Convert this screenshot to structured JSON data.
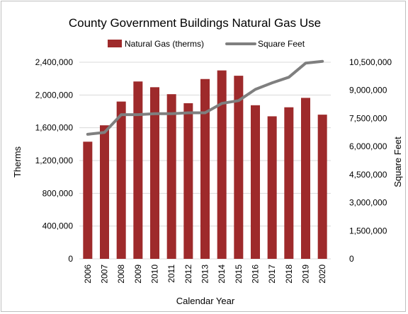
{
  "chart_data": {
    "type": "bar+line",
    "title": "County Government Buildings Natural Gas Use",
    "xlabel": "Calendar Year",
    "ylabel": "Therms",
    "y2label": "Square Feet",
    "categories": [
      "2006",
      "2007",
      "2008",
      "2009",
      "2010",
      "2011",
      "2012",
      "2013",
      "2014",
      "2015",
      "2016",
      "2017",
      "2018",
      "2019",
      "2020"
    ],
    "ylim": [
      0,
      2400000
    ],
    "y2lim": [
      0,
      10500000
    ],
    "yticks": [
      "0",
      "400,000",
      "800,000",
      "1,200,000",
      "1,600,000",
      "2,000,000",
      "2,400,000"
    ],
    "y2ticks": [
      "0",
      "1,500,000",
      "3,000,000",
      "4,500,000",
      "6,000,000",
      "7,500,000",
      "9,000,000",
      "10,500,000"
    ],
    "series": [
      {
        "name": "Natural Gas (therms)",
        "type": "bar",
        "axis": "left",
        "color": "#9e2a2b",
        "values": [
          1430000,
          1630000,
          1920000,
          2165000,
          2095000,
          2010000,
          1900000,
          2195000,
          2300000,
          2235000,
          1875000,
          1740000,
          1850000,
          1965000,
          1760000
        ]
      },
      {
        "name": "Square Feet",
        "type": "line",
        "axis": "right",
        "color": "#7f7f7f",
        "values": [
          6650000,
          6750000,
          7700000,
          7700000,
          7750000,
          7750000,
          7800000,
          7800000,
          8300000,
          8450000,
          9050000,
          9400000,
          9700000,
          10450000,
          10550000
        ]
      }
    ],
    "grid": true,
    "legend": "top"
  }
}
